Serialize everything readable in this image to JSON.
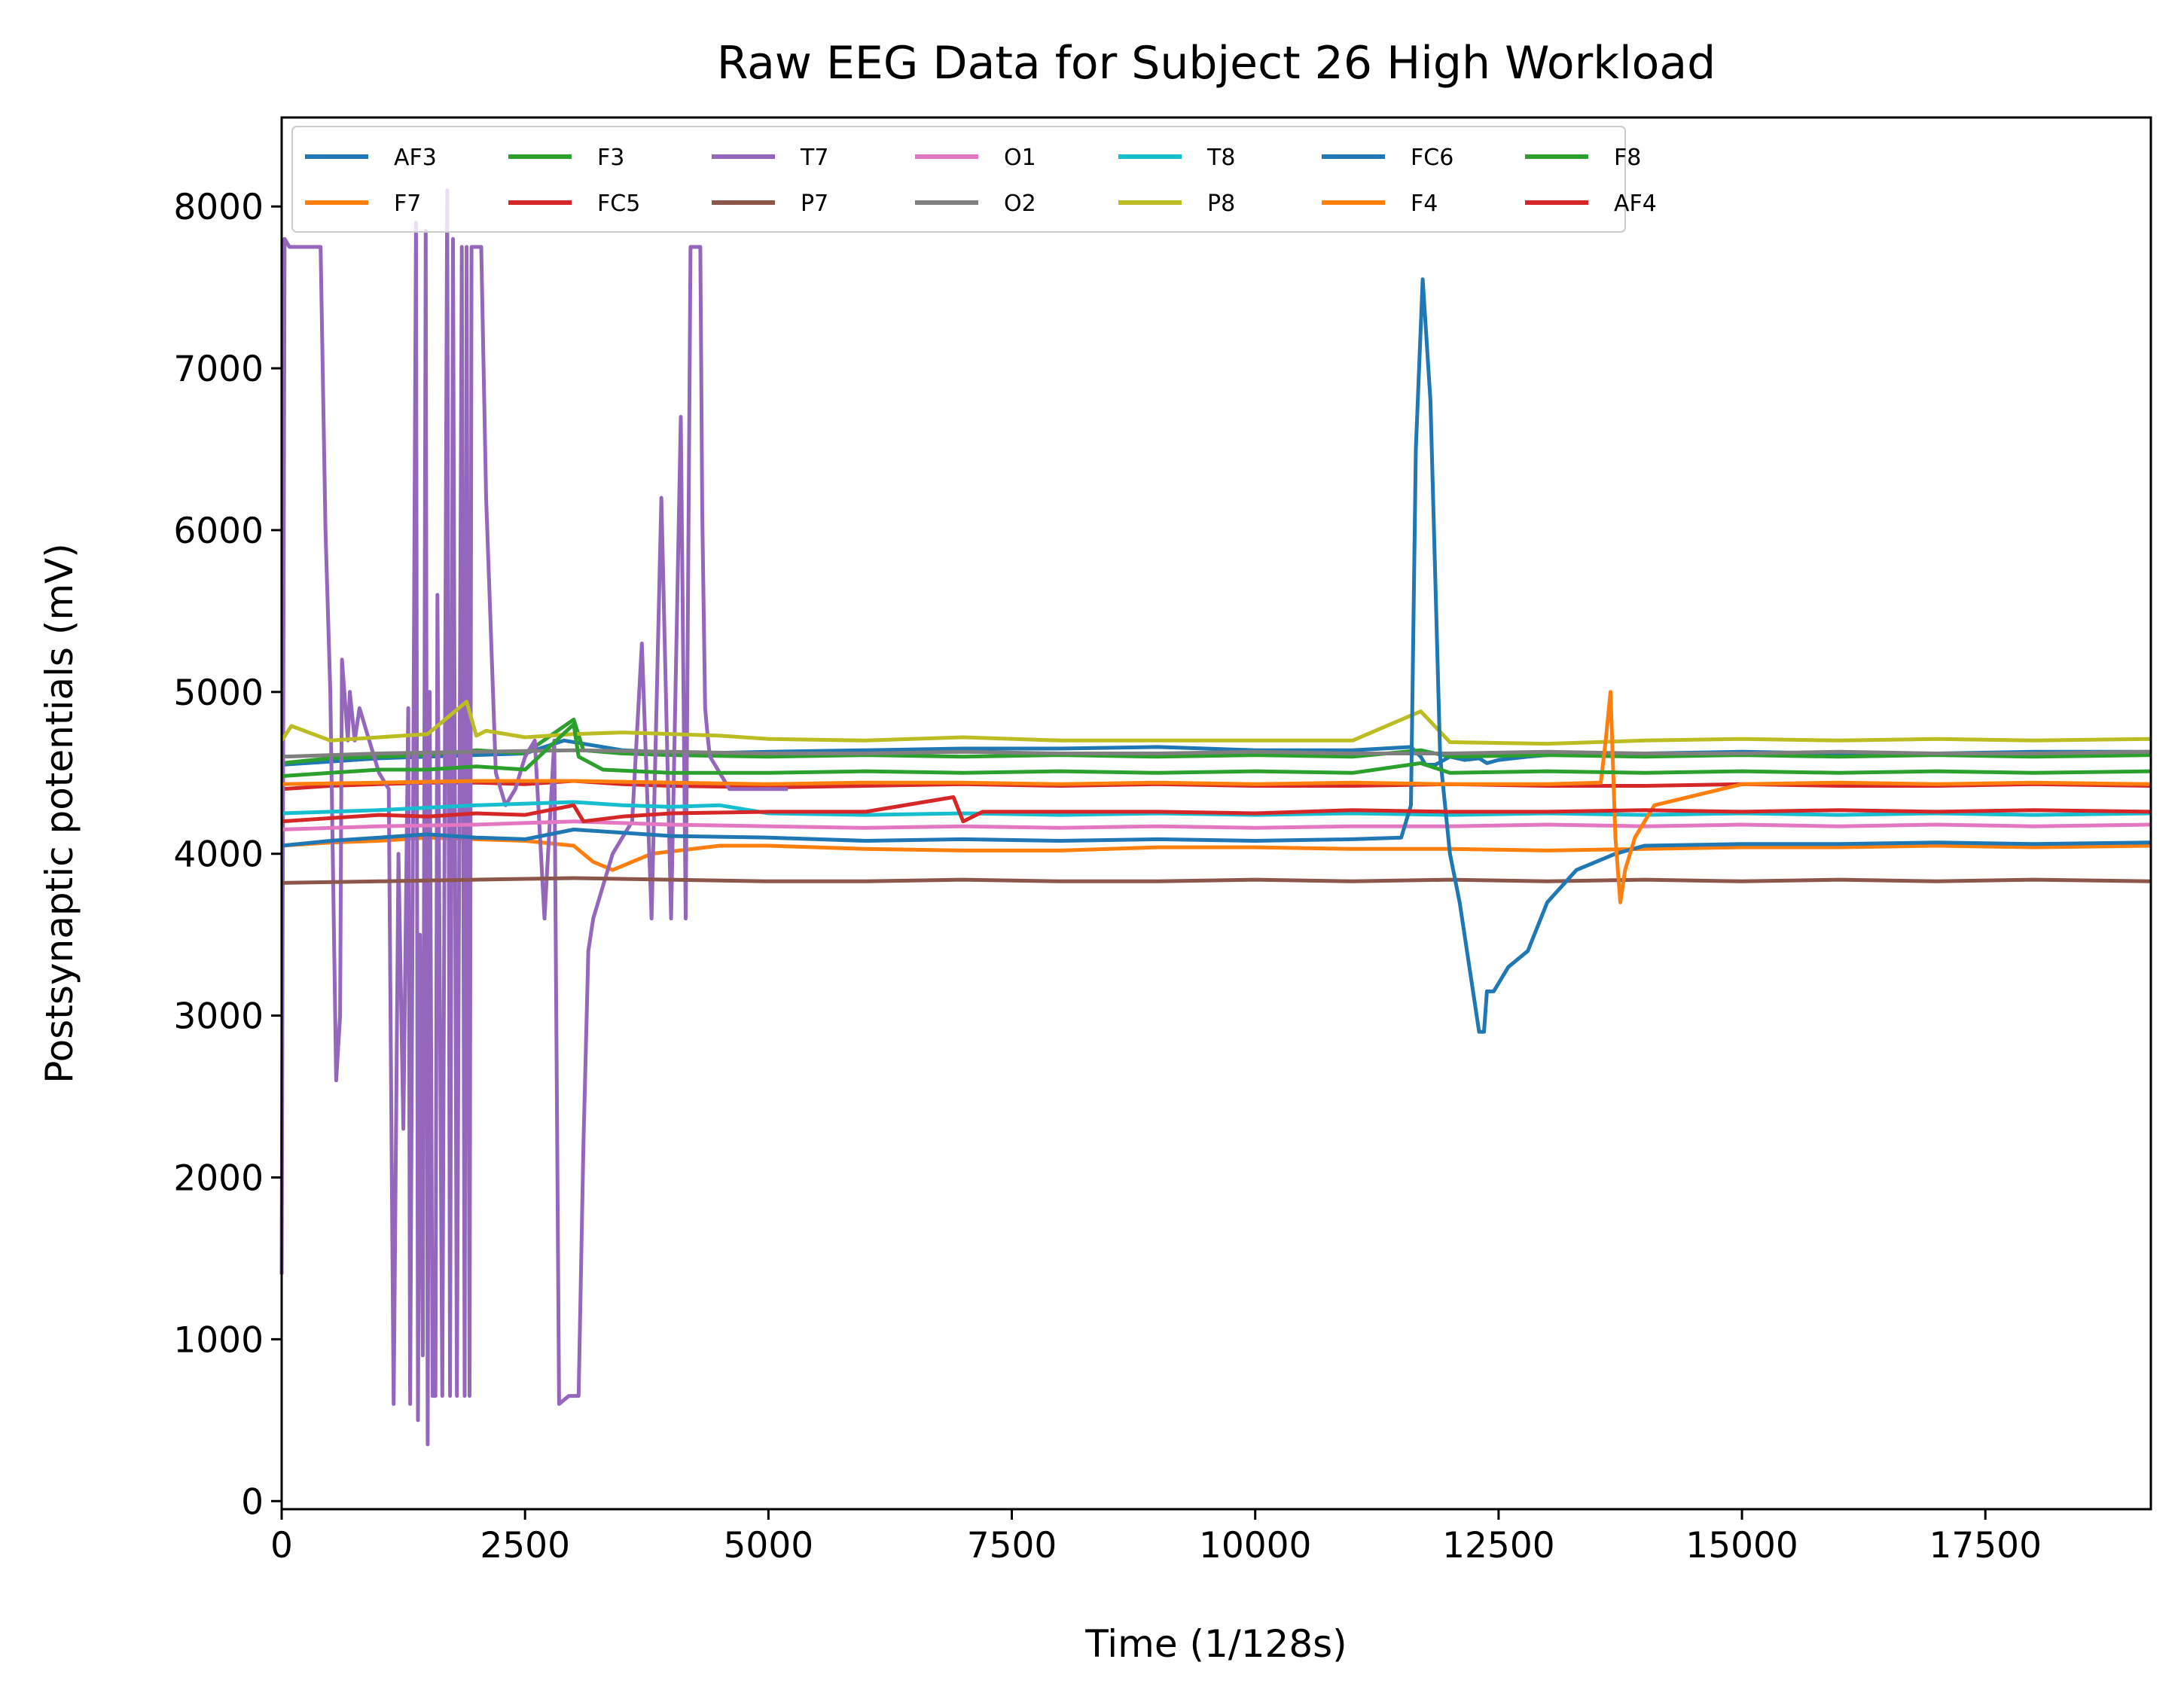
{
  "chart_data": {
    "type": "line",
    "title": "Raw EEG Data for Subject 26 High Workload",
    "xlabel": "Time (1/128s)",
    "ylabel": "Postsynaptic potentials (mV)",
    "xlim": [
      0,
      19200
    ],
    "ylim": [
      -50,
      8550
    ],
    "xticks": [
      0,
      2500,
      5000,
      7500,
      10000,
      12500,
      15000,
      17500
    ],
    "yticks": [
      0,
      1000,
      2000,
      3000,
      4000,
      5000,
      6000,
      7000,
      8000
    ],
    "grid": false,
    "legend_position": "top-left",
    "legend_columns": 7,
    "series": [
      {
        "name": "AF3",
        "color": "#1f77b4",
        "x": [
          0,
          500,
          1000,
          1500,
          2000,
          2500,
          2900,
          3500,
          4200,
          5000,
          6000,
          7000,
          8000,
          9000,
          10000,
          11000,
          11600,
          11700,
          11750,
          11850,
          12000,
          12150,
          12300,
          12380,
          12500,
          12800,
          13200,
          14000,
          15000,
          16000,
          17000,
          18000,
          19200
        ],
        "y": [
          4550,
          4570,
          4590,
          4600,
          4610,
          4620,
          4700,
          4640,
          4620,
          4630,
          4640,
          4650,
          4650,
          4660,
          4640,
          4640,
          4660,
          4600,
          4550,
          4550,
          4600,
          4580,
          4590,
          4560,
          4580,
          4600,
          4620,
          4620,
          4630,
          4620,
          4620,
          4630,
          4630
        ]
      },
      {
        "name": "F7",
        "color": "#ff7f0e",
        "x": [
          0,
          500,
          1000,
          1500,
          2000,
          2500,
          3000,
          3200,
          3400,
          3800,
          4500,
          5000,
          6000,
          7000,
          8000,
          9000,
          10000,
          11000,
          12000,
          13000,
          14000,
          15000,
          16000,
          17000,
          18000,
          19200
        ],
        "y": [
          4050,
          4070,
          4080,
          4100,
          4090,
          4080,
          4050,
          3950,
          3900,
          4000,
          4050,
          4050,
          4030,
          4020,
          4020,
          4040,
          4040,
          4030,
          4030,
          4020,
          4030,
          4040,
          4040,
          4050,
          4040,
          4050
        ]
      },
      {
        "name": "F3",
        "color": "#2ca02c",
        "x": [
          0,
          500,
          1000,
          1500,
          2000,
          2500,
          3000,
          3100,
          3500,
          4000,
          5000,
          6000,
          7000,
          8000,
          9000,
          10000,
          11000,
          11700,
          12000,
          13000,
          14000,
          15000,
          16000,
          17000,
          18000,
          19200
        ],
        "y": [
          4560,
          4590,
          4600,
          4610,
          4640,
          4620,
          4830,
          4640,
          4620,
          4610,
          4600,
          4610,
          4600,
          4610,
          4600,
          4610,
          4600,
          4640,
          4600,
          4610,
          4600,
          4610,
          4600,
          4610,
          4600,
          4610
        ]
      },
      {
        "name": "FC5",
        "color": "#d62728",
        "x": [
          0,
          500,
          1000,
          1500,
          2000,
          2500,
          3000,
          3500,
          4000,
          5000,
          6000,
          7000,
          8000,
          9000,
          10000,
          11000,
          12000,
          13000,
          14000,
          15000,
          16000,
          17000,
          18000,
          19200
        ],
        "y": [
          4400,
          4420,
          4430,
          4440,
          4440,
          4430,
          4450,
          4430,
          4420,
          4410,
          4420,
          4430,
          4420,
          4430,
          4420,
          4420,
          4430,
          4420,
          4420,
          4430,
          4420,
          4420,
          4430,
          4420
        ]
      },
      {
        "name": "T7",
        "color": "#9467bd",
        "x": [
          0,
          30,
          80,
          150,
          400,
          450,
          500,
          560,
          600,
          620,
          680,
          700,
          750,
          800,
          900,
          1000,
          1100,
          1150,
          1200,
          1250,
          1300,
          1320,
          1380,
          1400,
          1420,
          1450,
          1480,
          1500,
          1520,
          1550,
          1580,
          1600,
          1650,
          1700,
          1730,
          1760,
          1800,
          1850,
          1880,
          1900,
          1930,
          1950,
          2000,
          2050,
          2100,
          2200,
          2300,
          2400,
          2500,
          2600,
          2700,
          2800,
          2850,
          2950,
          3050,
          3100,
          3150,
          3200,
          3300,
          3400,
          3500,
          3600,
          3700,
          3800,
          3900,
          4000,
          4100,
          4150,
          4200,
          4250,
          4300,
          4320,
          4350,
          4380,
          4400,
          4450,
          4500,
          4550,
          4600,
          4700,
          4800,
          4900,
          5000,
          5100,
          5200
        ],
        "y": [
          1400,
          7800,
          7750,
          7750,
          7750,
          6000,
          5000,
          2600,
          3000,
          5200,
          4700,
          5000,
          4700,
          4900,
          4700,
          4500,
          4400,
          600,
          4000,
          2300,
          4900,
          600,
          7900,
          500,
          3500,
          900,
          7850,
          350,
          5000,
          650,
          650,
          5600,
          650,
          8100,
          650,
          7800,
          650,
          7750,
          650,
          7750,
          650,
          7750,
          7750,
          7750,
          6200,
          4500,
          4300,
          4400,
          4600,
          4700,
          3600,
          4700,
          600,
          650,
          650,
          2200,
          3400,
          3600,
          3800,
          4000,
          4100,
          4200,
          5300,
          3600,
          6200,
          3600,
          6700,
          3600,
          7750,
          7750,
          7750,
          6100,
          4900,
          4700,
          4600,
          4550,
          4500,
          4450,
          4400,
          4400,
          4400,
          4400,
          4400,
          4400,
          4400
        ]
      },
      {
        "name": "P7",
        "color": "#8c564b",
        "x": [
          0,
          1000,
          2000,
          3000,
          4000,
          5000,
          6000,
          7000,
          8000,
          9000,
          10000,
          11000,
          12000,
          13000,
          14000,
          15000,
          16000,
          17000,
          18000,
          19200
        ],
        "y": [
          3820,
          3830,
          3840,
          3850,
          3840,
          3830,
          3830,
          3840,
          3830,
          3830,
          3840,
          3830,
          3840,
          3830,
          3840,
          3830,
          3840,
          3830,
          3840,
          3830
        ]
      },
      {
        "name": "O1",
        "color": "#e377c2",
        "x": [
          0,
          1000,
          2000,
          3000,
          4000,
          5000,
          6000,
          7000,
          8000,
          9000,
          10000,
          11000,
          12000,
          13000,
          14000,
          15000,
          16000,
          17000,
          18000,
          19200
        ],
        "y": [
          4150,
          4170,
          4180,
          4200,
          4180,
          4170,
          4160,
          4170,
          4160,
          4170,
          4160,
          4170,
          4170,
          4180,
          4170,
          4180,
          4170,
          4180,
          4170,
          4180
        ]
      },
      {
        "name": "O2",
        "color": "#7f7f7f",
        "x": [
          0,
          1000,
          2000,
          3000,
          4000,
          5000,
          6000,
          7000,
          8000,
          9000,
          10000,
          11000,
          12000,
          13000,
          14000,
          15000,
          16000,
          17000,
          18000,
          19200
        ],
        "y": [
          4600,
          4620,
          4630,
          4640,
          4630,
          4620,
          4620,
          4630,
          4620,
          4620,
          4630,
          4620,
          4620,
          4630,
          4620,
          4620,
          4630,
          4620,
          4620,
          4630
        ]
      },
      {
        "name": "T8",
        "color": "#17becf",
        "x": [
          0,
          1000,
          2000,
          3000,
          3500,
          4000,
          4500,
          5000,
          6000,
          7000,
          8000,
          9000,
          10000,
          11000,
          12000,
          13000,
          14000,
          15000,
          16000,
          17000,
          18000,
          19200
        ],
        "y": [
          4250,
          4270,
          4300,
          4320,
          4300,
          4290,
          4300,
          4250,
          4240,
          4250,
          4240,
          4250,
          4240,
          4250,
          4240,
          4250,
          4240,
          4250,
          4240,
          4250,
          4240,
          4250
        ]
      },
      {
        "name": "P8",
        "color": "#bcbd22",
        "x": [
          0,
          100,
          500,
          1000,
          1500,
          1900,
          2000,
          2100,
          2500,
          3000,
          3500,
          4000,
          4500,
          5000,
          6000,
          7000,
          8000,
          9000,
          10000,
          11000,
          11700,
          12000,
          13000,
          14000,
          15000,
          16000,
          17000,
          18000,
          19200
        ],
        "y": [
          4700,
          4790,
          4700,
          4720,
          4740,
          4940,
          4730,
          4760,
          4720,
          4740,
          4750,
          4740,
          4730,
          4710,
          4700,
          4720,
          4700,
          4700,
          4700,
          4700,
          4880,
          4690,
          4680,
          4700,
          4710,
          4700,
          4710,
          4700,
          4710
        ]
      },
      {
        "name": "FC6",
        "color": "#1f77b4",
        "x": [
          0,
          500,
          1000,
          1500,
          2000,
          2500,
          3000,
          3500,
          4000,
          5000,
          6000,
          7000,
          8000,
          9000,
          10000,
          11000,
          11500,
          11600,
          11650,
          11720,
          11800,
          11900,
          12000,
          12100,
          12200,
          12300,
          12350,
          12380,
          12450,
          12600,
          12800,
          13000,
          13300,
          13700,
          14000,
          15000,
          16000,
          17000,
          18000,
          19200
        ],
        "y": [
          4050,
          4080,
          4100,
          4120,
          4100,
          4090,
          4150,
          4130,
          4110,
          4100,
          4080,
          4090,
          4080,
          4090,
          4080,
          4090,
          4100,
          4300,
          6500,
          7550,
          6800,
          4600,
          4000,
          3700,
          3300,
          2900,
          2900,
          3150,
          3150,
          3300,
          3400,
          3700,
          3900,
          4000,
          4050,
          4060,
          4060,
          4070,
          4060,
          4070
        ]
      },
      {
        "name": "F4",
        "color": "#ff7f0e",
        "x": [
          0,
          1000,
          2000,
          3000,
          4000,
          5000,
          6000,
          7000,
          8000,
          9000,
          10000,
          11000,
          12000,
          13000,
          13550,
          13600,
          13650,
          13700,
          13750,
          13800,
          13900,
          14100,
          15000,
          16000,
          17000,
          18000,
          19200
        ],
        "y": [
          4430,
          4440,
          4450,
          4450,
          4440,
          4430,
          4440,
          4440,
          4430,
          4440,
          4430,
          4440,
          4430,
          4430,
          4440,
          4700,
          5000,
          4100,
          3700,
          3900,
          4100,
          4300,
          4430,
          4440,
          4430,
          4440,
          4430
        ]
      },
      {
        "name": "F8",
        "color": "#2ca02c",
        "x": [
          0,
          500,
          1000,
          1500,
          2000,
          2500,
          3000,
          3050,
          3300,
          4000,
          5000,
          6000,
          7000,
          8000,
          9000,
          10000,
          11000,
          11700,
          12000,
          13000,
          14000,
          15000,
          16000,
          17000,
          18000,
          19200
        ],
        "y": [
          4480,
          4500,
          4520,
          4520,
          4540,
          4520,
          4800,
          4600,
          4520,
          4500,
          4500,
          4510,
          4500,
          4510,
          4500,
          4510,
          4500,
          4560,
          4500,
          4510,
          4500,
          4510,
          4500,
          4510,
          4500,
          4510
        ]
      },
      {
        "name": "AF4",
        "color": "#d62728",
        "x": [
          0,
          500,
          1000,
          1500,
          2000,
          2500,
          3000,
          3100,
          3500,
          4000,
          5000,
          6000,
          6900,
          7000,
          7200,
          8000,
          9000,
          10000,
          11000,
          12000,
          13000,
          14000,
          15000,
          16000,
          17000,
          18000,
          19200
        ],
        "y": [
          4200,
          4220,
          4240,
          4230,
          4250,
          4240,
          4300,
          4200,
          4230,
          4250,
          4260,
          4260,
          4350,
          4200,
          4260,
          4260,
          4260,
          4250,
          4270,
          4260,
          4260,
          4270,
          4260,
          4270,
          4260,
          4270,
          4260
        ]
      }
    ]
  }
}
